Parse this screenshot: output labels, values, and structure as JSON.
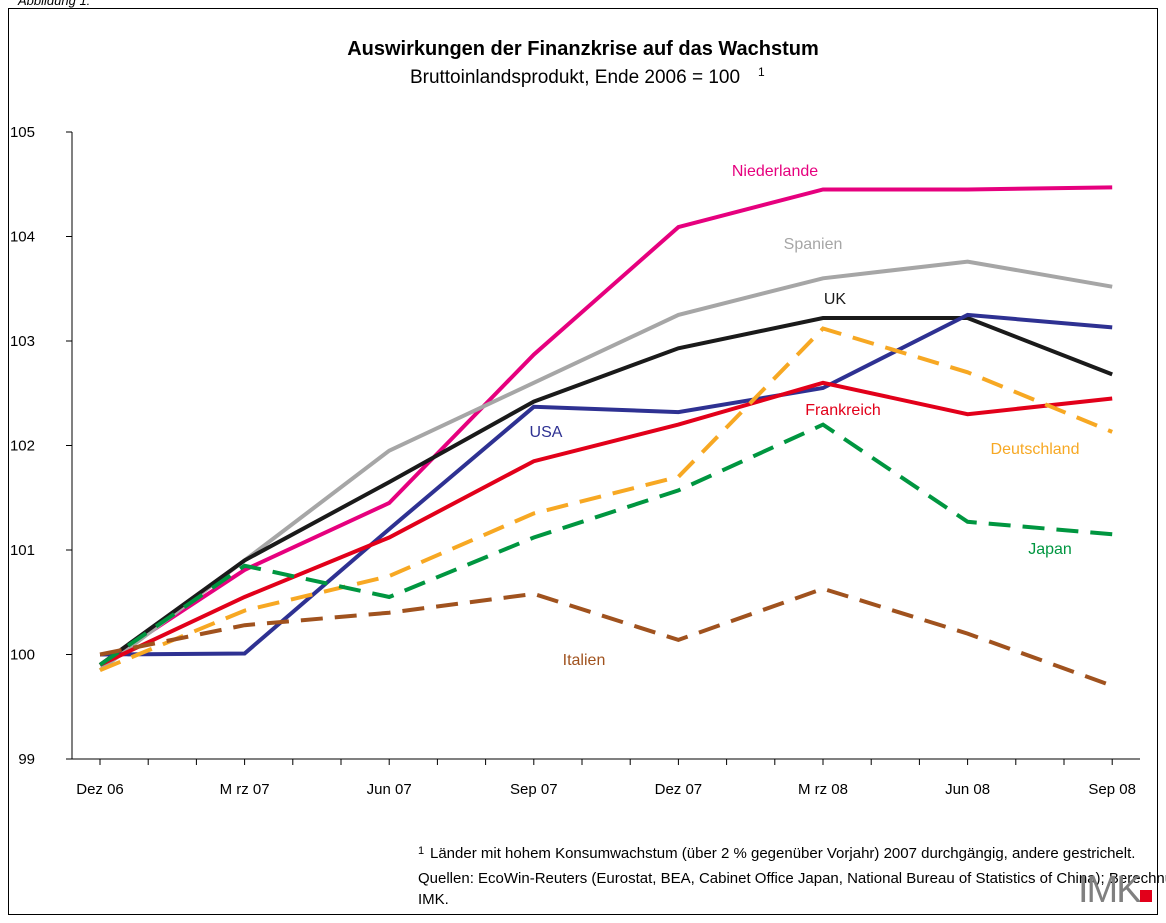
{
  "chart_data": {
    "type": "line",
    "figure_label": "Abbildung 1:",
    "title": "Auswirkungen der Finanzkrise auf das Wachstum",
    "subtitle": "Bruttoinlandsprodukt, Ende 2006 = 100",
    "subtitle_note": "1",
    "categories": [
      "Dez 06",
      "M rz 07",
      "Jun 07",
      "Sep 07",
      "Dez 07",
      "M rz 08",
      "Jun 08",
      "Sep 08"
    ],
    "ylim": [
      99,
      105
    ],
    "yticks": [
      99,
      100,
      101,
      102,
      103,
      104,
      105
    ],
    "grid": false,
    "series": [
      {
        "name": "Niederlande",
        "color": "#e6007e",
        "dashed": false,
        "values": [
          99.9,
          100.81,
          101.45,
          102.87,
          104.09,
          104.45,
          104.45,
          104.47
        ]
      },
      {
        "name": "Spanien",
        "color": "#a6a6a6",
        "dashed": false,
        "values": [
          99.85,
          100.9,
          101.95,
          102.6,
          103.25,
          103.6,
          103.76,
          103.52
        ]
      },
      {
        "name": "UK",
        "color": "#1a1a1a",
        "dashed": false,
        "values": [
          99.9,
          100.9,
          101.65,
          102.42,
          102.93,
          103.22,
          103.22,
          102.68
        ]
      },
      {
        "name": "USA",
        "color": "#2e3192",
        "dashed": false,
        "values": [
          100.0,
          100.01,
          101.2,
          102.37,
          102.32,
          102.55,
          103.25,
          103.13
        ]
      },
      {
        "name": "Frankreich",
        "color": "#e2001a",
        "dashed": false,
        "values": [
          99.9,
          100.55,
          101.12,
          101.85,
          102.2,
          102.6,
          102.3,
          102.45
        ]
      },
      {
        "name": "Deutschland",
        "color": "#f7a823",
        "dashed": true,
        "values": [
          99.85,
          100.42,
          100.75,
          101.35,
          101.7,
          103.12,
          102.7,
          102.13
        ]
      },
      {
        "name": "Japan",
        "color": "#009640",
        "dashed": true,
        "values": [
          99.9,
          100.85,
          100.55,
          101.12,
          101.57,
          102.2,
          101.27,
          101.15
        ]
      },
      {
        "name": "Italien",
        "color": "#a0521e",
        "dashed": true,
        "values": [
          100.0,
          100.28,
          100.4,
          100.58,
          100.14,
          100.63,
          100.2,
          99.7
        ]
      }
    ],
    "footnote_marker": "1",
    "footnote": "Länder mit hohem Konsumwachstum (über 2 % gegenüber Vorjahr) 2007 durchgängig, andere gestrichelt.",
    "source_line1": "Quellen: EcoWin-Reuters (Eurostat, BEA, Cabinet Office Japan, National Bureau of Statistics of China); Berechnungen des",
    "source_line2": "IMK.",
    "logo": "IMK"
  }
}
